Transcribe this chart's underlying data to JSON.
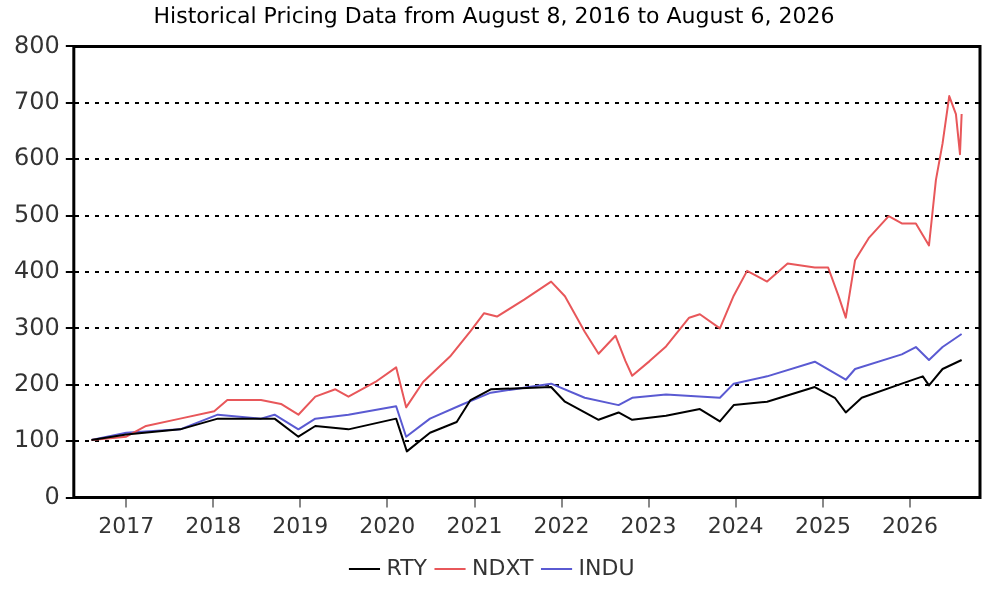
{
  "chart_data": {
    "type": "line",
    "title": "Historical Pricing Data from August 8, 2016 to August 6, 2026",
    "xlim": [
      "2016-05-26",
      "2026-10-22"
    ],
    "xticks": [
      "2017",
      "2018",
      "2019",
      "2020",
      "2021",
      "2022",
      "2023",
      "2024",
      "2025",
      "2026"
    ],
    "ylim": [
      0,
      800
    ],
    "yticks": [
      0,
      100,
      200,
      300,
      400,
      500,
      600,
      700,
      800
    ],
    "grid": "y",
    "legend": "bottom",
    "marker": "none",
    "line_style": "solid",
    "series": [
      {
        "name": "RTY",
        "color": "#000000",
        "x": [
          "2016-08-08",
          "2017-01-01",
          "2017-08-15",
          "2018-01-20",
          "2018-09-15",
          "2018-12-24",
          "2019-03-05",
          "2019-07-22",
          "2020-02-07",
          "2020-03-23",
          "2020-06-28",
          "2020-10-18",
          "2020-12-15",
          "2021-03-10",
          "2021-11-18",
          "2022-01-15",
          "2022-06-05",
          "2022-08-28",
          "2022-10-24",
          "2023-03-15",
          "2023-08-04",
          "2023-10-27",
          "2023-12-24",
          "2024-05-12",
          "2024-11-28",
          "2025-02-20",
          "2025-04-07",
          "2025-06-13",
          "2025-11-28",
          "2026-02-24",
          "2026-03-22",
          "2026-05-18",
          "2026-08-06"
        ],
        "values": [
          102,
          112,
          121,
          140,
          140,
          108,
          127,
          121,
          140,
          82,
          115,
          134,
          173,
          192,
          196,
          170,
          138,
          151,
          138,
          145,
          157,
          135,
          164,
          170,
          196,
          177,
          151,
          177,
          202,
          215,
          199,
          228,
          244
        ]
      },
      {
        "name": "NDXT",
        "color": "#e8575a",
        "x": [
          "2016-08-08",
          "2017-01-01",
          "2017-03-25",
          "2017-08-15",
          "2018-01-05",
          "2018-03-01",
          "2018-07-20",
          "2018-10-12",
          "2018-12-24",
          "2019-03-05",
          "2019-05-28",
          "2019-07-22",
          "2019-11-12",
          "2020-02-07",
          "2020-03-20",
          "2020-05-30",
          "2020-09-20",
          "2020-12-15",
          "2021-02-10",
          "2021-04-05",
          "2021-07-28",
          "2021-11-18",
          "2022-01-15",
          "2022-04-08",
          "2022-06-05",
          "2022-08-15",
          "2022-09-26",
          "2022-10-24",
          "2023-01-05",
          "2023-03-15",
          "2023-06-20",
          "2023-08-04",
          "2023-10-27",
          "2023-12-24",
          "2024-02-18",
          "2024-05-12",
          "2024-08-06",
          "2024-11-28",
          "2025-01-23",
          "2025-03-07",
          "2025-04-07",
          "2025-05-16",
          "2025-07-12",
          "2025-10-04",
          "2025-11-28",
          "2026-01-26",
          "2026-03-22",
          "2026-04-20",
          "2026-05-18",
          "2026-06-15",
          "2026-07-13",
          "2026-07-30",
          "2026-08-06"
        ],
        "values": [
          102,
          108,
          127,
          140,
          153,
          173,
          173,
          166,
          147,
          179,
          192,
          179,
          205,
          231,
          160,
          205,
          250,
          295,
          327,
          321,
          351,
          383,
          357,
          294,
          255,
          287,
          242,
          216,
          242,
          268,
          319,
          325,
          300,
          358,
          402,
          383,
          415,
          408,
          408,
          358,
          319,
          421,
          460,
          499,
          486,
          486,
          447,
          563,
          628,
          712,
          680,
          609,
          680
        ]
      },
      {
        "name": "INDU",
        "color": "#5a5ad2",
        "x": [
          "2016-08-08",
          "2017-01-01",
          "2017-08-15",
          "2018-01-20",
          "2018-07-20",
          "2018-09-15",
          "2018-12-24",
          "2019-03-05",
          "2019-07-22",
          "2020-02-07",
          "2020-03-20",
          "2020-06-28",
          "2020-11-15",
          "2021-03-10",
          "2021-11-18",
          "2022-04-08",
          "2022-08-28",
          "2022-10-24",
          "2023-03-15",
          "2023-10-27",
          "2023-12-24",
          "2024-05-12",
          "2024-11-28",
          "2025-04-07",
          "2025-05-16",
          "2025-11-28",
          "2026-01-26",
          "2026-03-22",
          "2026-05-18",
          "2026-08-06"
        ],
        "values": [
          102,
          115,
          121,
          147,
          140,
          147,
          121,
          140,
          147,
          162,
          108,
          140,
          166,
          186,
          202,
          177,
          164,
          177,
          183,
          177,
          202,
          215,
          241,
          209,
          228,
          254,
          267,
          244,
          267,
          290
        ]
      }
    ]
  }
}
